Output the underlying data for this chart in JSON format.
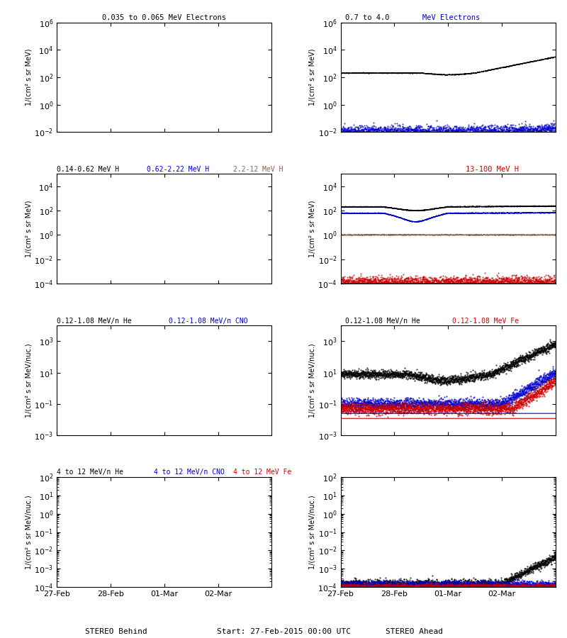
{
  "background_color": "#ffffff",
  "color_black": "#000000",
  "color_blue": "#0000cc",
  "color_red": "#cc0000",
  "color_brown": "#8B6050",
  "seed": 42,
  "n_points": 2000,
  "xtick_labels": [
    "27-Feb",
    "28-Feb",
    "01-Mar",
    "02-Mar"
  ],
  "xlabel_left": "STEREO Behind",
  "xlabel_right": "STEREO Ahead",
  "xlabel_center": "Start: 27-Feb-2015 00:00 UTC",
  "ylabel_elec": "1/(cm² s sr MeV)",
  "ylabel_ion": "1/(cm² s sr MeV/nuc.)",
  "panels": {
    "r1l_title": [
      [
        "0.035 to 0.065 MeV Electrons",
        "black"
      ]
    ],
    "r1r_title": [
      [
        "0.7 to 4.0 MeV Electrons",
        "blue"
      ]
    ],
    "r2l_title": [
      [
        "0.14-0.62 MeV H",
        "black"
      ],
      [
        "  0.62-2.22 MeV H",
        "blue"
      ],
      [
        "  2.2-12 MeV H",
        "brown"
      ]
    ],
    "r2r_title": [
      [
        "13-100 MeV H",
        "red"
      ]
    ],
    "r3l_title": [
      [
        "0.12-1.08 MeV/n He",
        "black"
      ],
      [
        "  0.12-1.08 MeV/n CNO",
        "blue"
      ]
    ],
    "r3r_title": [
      [
        "0.12-1.08 MeV Fe",
        "red"
      ]
    ],
    "r4l_title": [
      [
        "4 to 12 MeV/n He",
        "black"
      ],
      [
        "  4 to 12 MeV/n CNO",
        "blue"
      ],
      [
        "  4 to 12 MeV Fe",
        "red"
      ]
    ],
    "r4r_title": []
  }
}
